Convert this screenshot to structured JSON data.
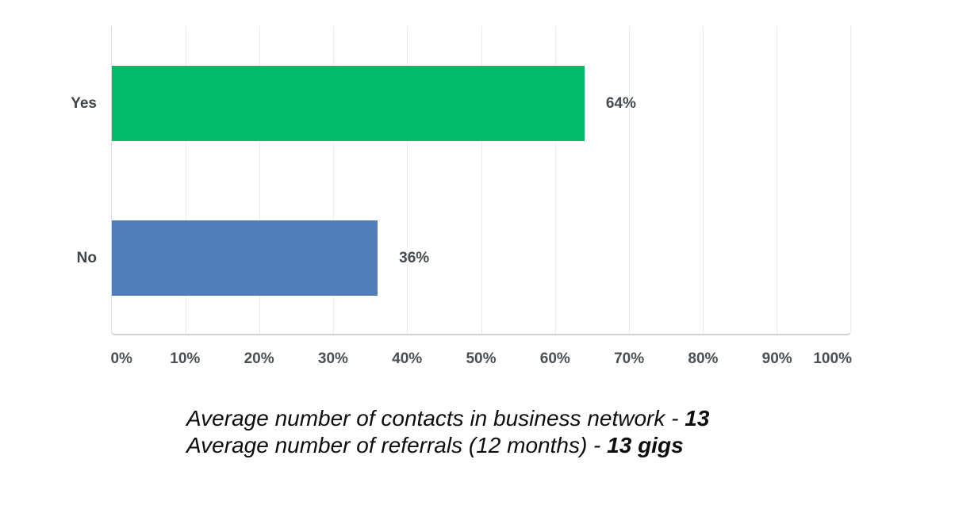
{
  "chart_data": {
    "type": "bar",
    "orientation": "horizontal",
    "title": "",
    "categories": [
      "Yes",
      "No"
    ],
    "values": [
      64,
      36
    ],
    "value_labels": [
      "64%",
      "36%"
    ],
    "bar_colors": [
      "#00bc68",
      "#4f7eba"
    ],
    "x_tick_labels": [
      "0%",
      "10%",
      "20%",
      "30%",
      "40%",
      "50%",
      "60%",
      "70%",
      "80%",
      "90%",
      "100%"
    ],
    "xlim": [
      0,
      100
    ],
    "grid": true,
    "legend": "none"
  },
  "caption": {
    "line1": {
      "text": "Average number of contacts in business network - ",
      "bold": "13"
    },
    "line2": {
      "text": "Average number of referrals (12 months) - ",
      "bold": "13 gigs"
    }
  }
}
